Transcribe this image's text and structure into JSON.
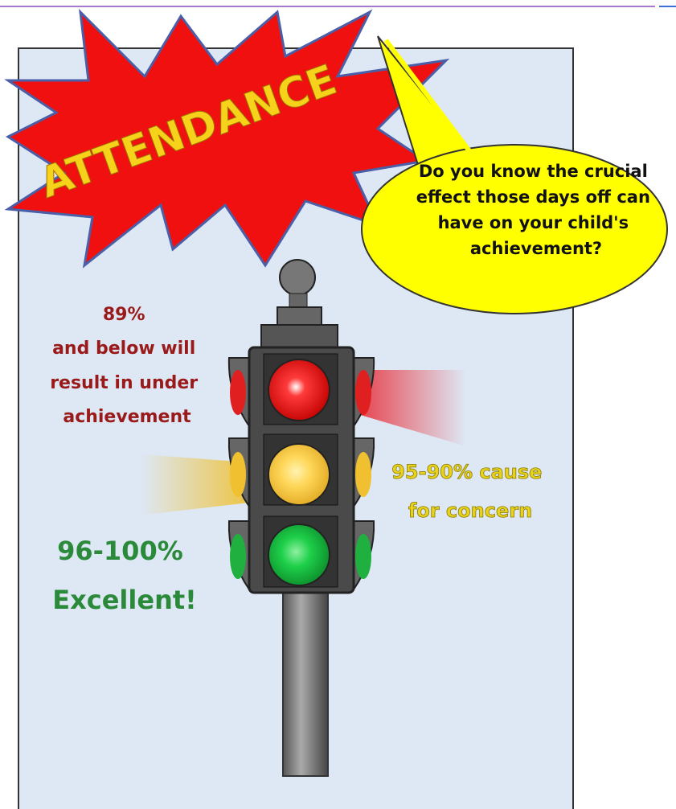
{
  "poster": {
    "title": "ATTENDANCE",
    "speech_bubble": [
      "Do you know the crucial",
      "effect those days off can",
      "have on your child's",
      "achievement?"
    ],
    "red_note": [
      "89%",
      "and below will",
      "result in under",
      "achievement"
    ],
    "amber_note": [
      "95-90% cause",
      "for concern"
    ],
    "green_note": [
      "96-100%",
      "Excellent!"
    ]
  }
}
